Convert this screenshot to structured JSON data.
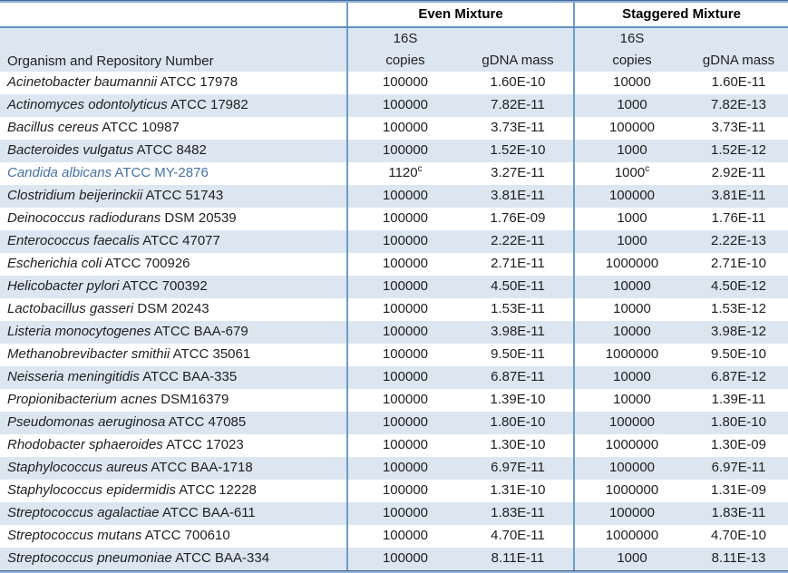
{
  "table": {
    "group_headers": {
      "even": "Even Mixture",
      "staggered": "Staggered Mixture"
    },
    "column_headers": {
      "organism": "Organism and Repository Number",
      "unit_top": "16S",
      "unit_bottom": "copies",
      "gdna": "gDNA mass"
    },
    "colors": {
      "band_fill": "#dce6f1",
      "separator_line": "#6d9bca",
      "header_underline": "#5e8fc5",
      "outer_border_dark": "#47698f",
      "outer_border_light": "#8cb2da",
      "highlight_text": "#4472a8"
    },
    "rows": [
      {
        "species": "Acinetobacter baumannii",
        "strain": "ATCC 17978",
        "even_copies": "100000",
        "even_sup": "",
        "even_mass": "1.60E-10",
        "stag_copies": "10000",
        "stag_sup": "",
        "stag_mass": "1.60E-11",
        "highlight": false
      },
      {
        "species": "Actinomyces odontolyticus",
        "strain": "ATCC 17982",
        "even_copies": "100000",
        "even_sup": "",
        "even_mass": "7.82E-11",
        "stag_copies": "1000",
        "stag_sup": "",
        "stag_mass": "7.82E-13",
        "highlight": false
      },
      {
        "species": "Bacillus cereus",
        "strain": "ATCC 10987",
        "even_copies": "100000",
        "even_sup": "",
        "even_mass": "3.73E-11",
        "stag_copies": "100000",
        "stag_sup": "",
        "stag_mass": "3.73E-11",
        "highlight": false
      },
      {
        "species": "Bacteroides vulgatus",
        "strain": "ATCC 8482",
        "even_copies": "100000",
        "even_sup": "",
        "even_mass": "1.52E-10",
        "stag_copies": "1000",
        "stag_sup": "",
        "stag_mass": "1.52E-12",
        "highlight": false
      },
      {
        "species": "Candida albicans",
        "strain": "ATCC MY-2876",
        "even_copies": "1120",
        "even_sup": "c",
        "even_mass": "3.27E-11",
        "stag_copies": "1000",
        "stag_sup": "c",
        "stag_mass": "2.92E-11",
        "highlight": true
      },
      {
        "species": "Clostridium beijerinckii",
        "strain": "ATCC 51743",
        "even_copies": "100000",
        "even_sup": "",
        "even_mass": "3.81E-11",
        "stag_copies": "100000",
        "stag_sup": "",
        "stag_mass": "3.81E-11",
        "highlight": false
      },
      {
        "species": "Deinococcus radiodurans",
        "strain": "DSM 20539",
        "even_copies": "100000",
        "even_sup": "",
        "even_mass": "1.76E-09",
        "stag_copies": "1000",
        "stag_sup": "",
        "stag_mass": "1.76E-11",
        "highlight": false
      },
      {
        "species": "Enterococcus faecalis",
        "strain": "ATCC 47077",
        "even_copies": "100000",
        "even_sup": "",
        "even_mass": "2.22E-11",
        "stag_copies": "1000",
        "stag_sup": "",
        "stag_mass": "2.22E-13",
        "highlight": false
      },
      {
        "species": "Escherichia coli",
        "strain": "ATCC 700926",
        "even_copies": "100000",
        "even_sup": "",
        "even_mass": "2.71E-11",
        "stag_copies": "1000000",
        "stag_sup": "",
        "stag_mass": "2.71E-10",
        "highlight": false
      },
      {
        "species": "Helicobacter pylori",
        "strain": "ATCC 700392",
        "even_copies": "100000",
        "even_sup": "",
        "even_mass": "4.50E-11",
        "stag_copies": "10000",
        "stag_sup": "",
        "stag_mass": "4.50E-12",
        "highlight": false
      },
      {
        "species": "Lactobacillus gasseri",
        "strain": "DSM 20243",
        "even_copies": "100000",
        "even_sup": "",
        "even_mass": "1.53E-11",
        "stag_copies": "10000",
        "stag_sup": "",
        "stag_mass": "1.53E-12",
        "highlight": false
      },
      {
        "species": "Listeria monocytogenes",
        "strain": "ATCC BAA-679",
        "even_copies": "100000",
        "even_sup": "",
        "even_mass": "3.98E-11",
        "stag_copies": "10000",
        "stag_sup": "",
        "stag_mass": "3.98E-12",
        "highlight": false
      },
      {
        "species": "Methanobrevibacter smithii",
        "strain": "ATCC 35061",
        "even_copies": "100000",
        "even_sup": "",
        "even_mass": "9.50E-11",
        "stag_copies": "1000000",
        "stag_sup": "",
        "stag_mass": "9.50E-10",
        "highlight": false
      },
      {
        "species": "Neisseria meningitidis",
        "strain": "ATCC BAA-335",
        "even_copies": "100000",
        "even_sup": "",
        "even_mass": "6.87E-11",
        "stag_copies": "10000",
        "stag_sup": "",
        "stag_mass": "6.87E-12",
        "highlight": false
      },
      {
        "species": "Propionibacterium acnes",
        "strain": "DSM16379",
        "even_copies": "100000",
        "even_sup": "",
        "even_mass": "1.39E-10",
        "stag_copies": "10000",
        "stag_sup": "",
        "stag_mass": "1.39E-11",
        "highlight": false
      },
      {
        "species": "Pseudomonas aeruginosa",
        "strain": "ATCC 47085",
        "even_copies": "100000",
        "even_sup": "",
        "even_mass": "1.80E-10",
        "stag_copies": "100000",
        "stag_sup": "",
        "stag_mass": "1.80E-10",
        "highlight": false
      },
      {
        "species": "Rhodobacter sphaeroides",
        "strain": "ATCC 17023",
        "even_copies": "100000",
        "even_sup": "",
        "even_mass": "1.30E-10",
        "stag_copies": "1000000",
        "stag_sup": "",
        "stag_mass": "1.30E-09",
        "highlight": false
      },
      {
        "species": "Staphylococcus aureus",
        "strain": "ATCC BAA-1718",
        "even_copies": "100000",
        "even_sup": "",
        "even_mass": "6.97E-11",
        "stag_copies": "100000",
        "stag_sup": "",
        "stag_mass": "6.97E-11",
        "highlight": false
      },
      {
        "species": "Staphylococcus epidermidis",
        "strain": "ATCC 12228",
        "even_copies": "100000",
        "even_sup": "",
        "even_mass": "1.31E-10",
        "stag_copies": "1000000",
        "stag_sup": "",
        "stag_mass": "1.31E-09",
        "highlight": false
      },
      {
        "species": "Streptococcus agalactiae",
        "strain": "ATCC BAA-611",
        "even_copies": "100000",
        "even_sup": "",
        "even_mass": "1.83E-11",
        "stag_copies": "100000",
        "stag_sup": "",
        "stag_mass": "1.83E-11",
        "highlight": false
      },
      {
        "species": "Streptococcus mutans",
        "strain": "ATCC 700610",
        "even_copies": "100000",
        "even_sup": "",
        "even_mass": "4.70E-11",
        "stag_copies": "1000000",
        "stag_sup": "",
        "stag_mass": "4.70E-10",
        "highlight": false
      },
      {
        "species": "Streptococcus pneumoniae",
        "strain": "ATCC BAA-334",
        "even_copies": "100000",
        "even_sup": "",
        "even_mass": "8.11E-11",
        "stag_copies": "1000",
        "stag_sup": "",
        "stag_mass": "8.11E-13",
        "highlight": false
      }
    ]
  }
}
